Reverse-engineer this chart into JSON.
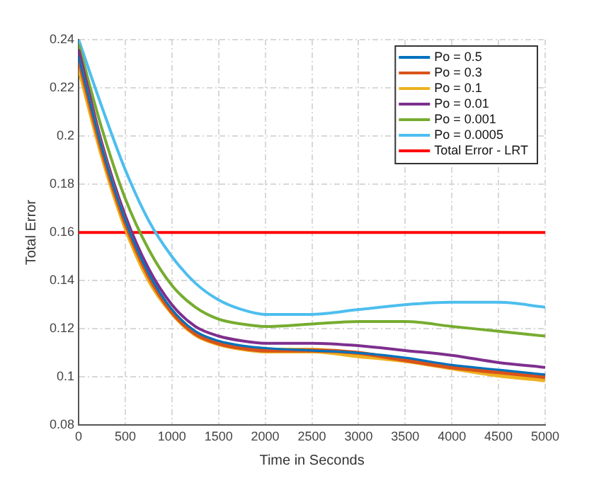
{
  "chart_data": {
    "type": "line",
    "xlabel": "Time in Seconds",
    "ylabel": "Total Error",
    "x": [
      0,
      250,
      500,
      750,
      1000,
      1250,
      1500,
      1750,
      2000,
      2500,
      3000,
      3500,
      4000,
      4500,
      5000
    ],
    "series": [
      {
        "name": "Po = 0.5",
        "color": "#0072bd",
        "values": [
          0.233,
          0.195,
          0.165,
          0.143,
          0.128,
          0.119,
          0.115,
          0.113,
          0.112,
          0.111,
          0.11,
          0.108,
          0.105,
          0.103,
          0.101
        ]
      },
      {
        "name": "Po = 0.3",
        "color": "#d95319",
        "values": [
          0.232,
          0.194,
          0.164,
          0.142,
          0.127,
          0.118,
          0.114,
          0.112,
          0.111,
          0.111,
          0.11,
          0.107,
          0.104,
          0.102,
          0.1
        ]
      },
      {
        "name": "Po = 0.1",
        "color": "#edb120",
        "values": [
          0.23,
          0.193,
          0.163,
          0.141,
          0.127,
          0.118,
          0.114,
          0.112,
          0.111,
          0.111,
          0.109,
          0.107,
          0.104,
          0.101,
          0.099
        ]
      },
      {
        "name": "Po = 0.01",
        "color": "#7e2f8e",
        "values": [
          0.236,
          0.197,
          0.167,
          0.145,
          0.13,
          0.121,
          0.117,
          0.115,
          0.114,
          0.114,
          0.113,
          0.111,
          0.109,
          0.106,
          0.104
        ]
      },
      {
        "name": "Po = 0.001",
        "color": "#77ac30",
        "values": [
          0.238,
          0.203,
          0.174,
          0.153,
          0.138,
          0.129,
          0.124,
          0.122,
          0.121,
          0.122,
          0.123,
          0.123,
          0.121,
          0.119,
          0.117
        ]
      },
      {
        "name": "Po = 0.0005",
        "color": "#4dbeee",
        "values": [
          0.24,
          0.212,
          0.186,
          0.165,
          0.15,
          0.139,
          0.132,
          0.128,
          0.126,
          0.126,
          0.128,
          0.13,
          0.131,
          0.131,
          0.129
        ]
      },
      {
        "name": "Total Error - LRT",
        "color": "#ff0000",
        "x": [
          0,
          5000
        ],
        "values": [
          0.16,
          0.16
        ]
      }
    ],
    "xlim": [
      0,
      5000
    ],
    "xticks": [
      0,
      500,
      1000,
      1500,
      2000,
      2500,
      3000,
      3500,
      4000,
      4500,
      5000
    ],
    "ylim": [
      0.08,
      0.24
    ],
    "yticks": [
      0.08,
      0.1,
      0.12,
      0.14,
      0.16,
      0.18,
      0.2,
      0.22,
      0.24
    ],
    "grid": true,
    "legend": "top right",
    "marker": "none",
    "line_style": "solid"
  }
}
